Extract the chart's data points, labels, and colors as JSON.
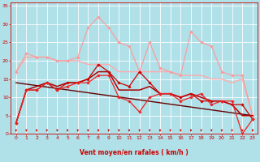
{
  "background_color": "#b0e0e8",
  "grid_color": "#ffffff",
  "xlabel": "Vent moyen/en rafales ( km/h )",
  "xlabel_color": "#cc0000",
  "tick_color": "#cc0000",
  "xlim": [
    -0.5,
    23.5
  ],
  "ylim": [
    0,
    36
  ],
  "yticks": [
    0,
    5,
    10,
    15,
    20,
    25,
    30,
    35
  ],
  "xticks": [
    0,
    1,
    2,
    3,
    4,
    5,
    6,
    7,
    8,
    9,
    10,
    11,
    12,
    13,
    14,
    15,
    16,
    17,
    18,
    19,
    20,
    21,
    22,
    23
  ],
  "lines": [
    {
      "x": [
        0,
        1,
        2,
        3,
        4,
        5,
        6,
        7,
        8,
        9,
        10,
        11,
        12,
        13,
        14,
        15,
        16,
        17,
        18,
        19,
        20,
        21,
        22,
        23
      ],
      "y": [
        17,
        21,
        21,
        21,
        20,
        20,
        20,
        19,
        19,
        19,
        17,
        17,
        17,
        17,
        17,
        17,
        16,
        16,
        16,
        15,
        15,
        14,
        15,
        5
      ],
      "color": "#ffaaaa",
      "lw": 1.0,
      "marker": null,
      "zorder": 2
    },
    {
      "x": [
        0,
        1,
        2,
        3,
        4,
        5,
        6,
        7,
        8,
        9,
        10,
        11,
        12,
        13,
        14,
        15,
        16,
        17,
        18,
        19,
        20,
        21,
        22,
        23
      ],
      "y": [
        17,
        22,
        21,
        21,
        20,
        20,
        21,
        29,
        32,
        29,
        25,
        24,
        17,
        25,
        18,
        17,
        16,
        28,
        25,
        24,
        17,
        16,
        16,
        5
      ],
      "color": "#ff9999",
      "lw": 0.8,
      "marker": "D",
      "markersize": 1.8,
      "zorder": 3
    },
    {
      "x": [
        0,
        1,
        2,
        3,
        4,
        5,
        6,
        7,
        8,
        9,
        10,
        11,
        12,
        13,
        14,
        15,
        16,
        17,
        18,
        19,
        20,
        21,
        22,
        23
      ],
      "y": [
        3,
        12,
        12,
        14,
        12,
        14,
        14,
        15,
        19,
        17,
        14,
        13,
        17,
        14,
        11,
        11,
        10,
        11,
        9,
        9,
        9,
        8,
        8,
        4
      ],
      "color": "#cc0000",
      "lw": 0.9,
      "marker": "D",
      "markersize": 1.8,
      "zorder": 4
    },
    {
      "x": [
        0,
        1,
        2,
        3,
        4,
        5,
        6,
        7,
        8,
        9,
        10,
        11,
        12,
        13,
        14,
        15,
        16,
        17,
        18,
        19,
        20,
        21,
        22,
        23
      ],
      "y": [
        3,
        12,
        12,
        14,
        12,
        13,
        14,
        14,
        16,
        16,
        10,
        9,
        6,
        10,
        11,
        11,
        9,
        10,
        11,
        8,
        9,
        9,
        0,
        4
      ],
      "color": "#ee2222",
      "lw": 0.9,
      "marker": "D",
      "markersize": 1.8,
      "zorder": 5
    },
    {
      "x": [
        0,
        1,
        2,
        3,
        4,
        5,
        6,
        7,
        8,
        9,
        10,
        11,
        12,
        13,
        14,
        15,
        16,
        17,
        18,
        19,
        20,
        21,
        22,
        23
      ],
      "y": [
        3,
        12,
        13,
        14,
        13,
        14,
        14,
        15,
        17,
        17,
        12,
        12,
        12,
        13,
        11,
        11,
        10,
        11,
        10,
        9,
        9,
        8,
        5,
        5
      ],
      "color": "#aa0000",
      "lw": 1.1,
      "marker": null,
      "zorder": 3
    },
    {
      "x": [
        0,
        23
      ],
      "y": [
        14,
        5
      ],
      "color": "#660000",
      "lw": 1.0,
      "marker": null,
      "zorder": 2
    }
  ],
  "arrow_color": "#cc0000",
  "tick_fontsize": 4.5,
  "xlabel_fontsize": 5.5
}
